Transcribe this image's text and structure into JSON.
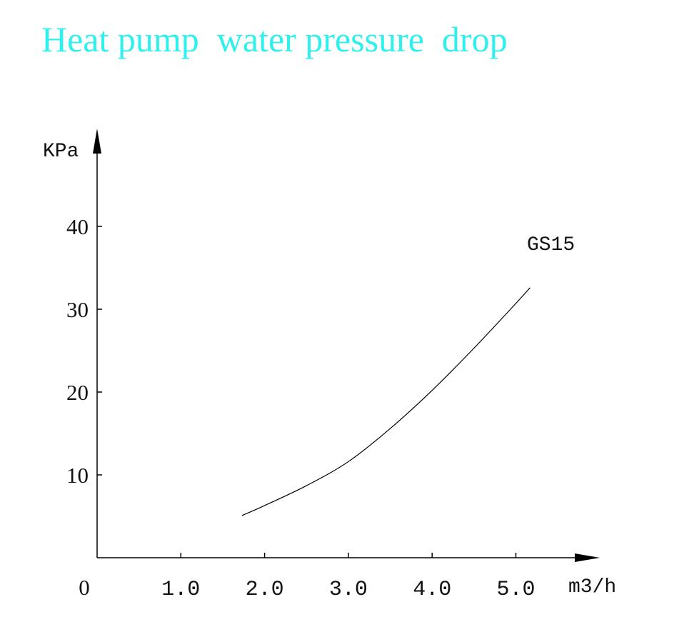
{
  "chart_data": {
    "type": "line",
    "title": "Heat pump  water pressure  drop",
    "xlabel": "m3/h",
    "ylabel": "KPa",
    "origin_label": "0",
    "xlim": [
      0,
      6.0
    ],
    "ylim": [
      0,
      50
    ],
    "x_ticks": [
      1.0,
      2.0,
      3.0,
      4.0,
      5.0
    ],
    "x_tick_labels": [
      "1.0",
      "2.0",
      "3.0",
      "4.0",
      "5.0"
    ],
    "y_ticks": [
      10,
      20,
      30,
      40
    ],
    "y_tick_labels": [
      "10",
      "20",
      "30",
      "40"
    ],
    "grid": false,
    "series": [
      {
        "name": "GS15",
        "color": "#000000",
        "x": [
          1.73,
          2.0,
          2.5,
          3.0,
          3.5,
          4.0,
          4.5,
          5.0,
          5.17
        ],
        "y": [
          5.1,
          6.3,
          8.7,
          11.6,
          15.6,
          20.2,
          25.3,
          30.7,
          32.6
        ]
      }
    ]
  },
  "colors": {
    "title": "#2ff0ec",
    "axis": "#000000"
  }
}
